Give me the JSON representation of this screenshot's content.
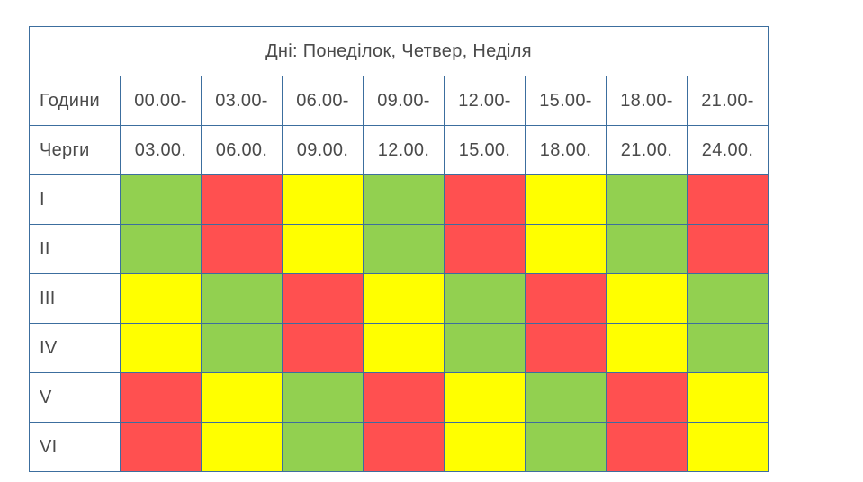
{
  "title": "Дні: Понеділок, Четвер, Неділя",
  "hours_label": "Години",
  "queues_label": "Черги",
  "start_times": [
    "00.00-",
    "03.00-",
    "06.00-",
    "09.00-",
    "12.00-",
    "15.00-",
    "18.00-",
    "21.00-"
  ],
  "end_times": [
    "03.00.",
    "06.00.",
    "09.00.",
    "12.00.",
    "15.00.",
    "18.00.",
    "21.00.",
    "24.00."
  ],
  "colors": {
    "green": "#92d050",
    "red": "#ff5050",
    "yellow": "#ffff00"
  },
  "rows": [
    {
      "queue": "I",
      "cells": [
        "green",
        "red",
        "yellow",
        "green",
        "red",
        "yellow",
        "green",
        "red"
      ]
    },
    {
      "queue": "II",
      "cells": [
        "green",
        "red",
        "yellow",
        "green",
        "red",
        "yellow",
        "green",
        "red"
      ]
    },
    {
      "queue": "III",
      "cells": [
        "yellow",
        "green",
        "red",
        "yellow",
        "green",
        "red",
        "yellow",
        "green"
      ]
    },
    {
      "queue": "IV",
      "cells": [
        "yellow",
        "green",
        "red",
        "yellow",
        "green",
        "red",
        "yellow",
        "green"
      ]
    },
    {
      "queue": "V",
      "cells": [
        "red",
        "yellow",
        "green",
        "red",
        "yellow",
        "green",
        "red",
        "yellow"
      ]
    },
    {
      "queue": "VI",
      "cells": [
        "red",
        "yellow",
        "green",
        "red",
        "yellow",
        "green",
        "red",
        "yellow"
      ]
    }
  ]
}
